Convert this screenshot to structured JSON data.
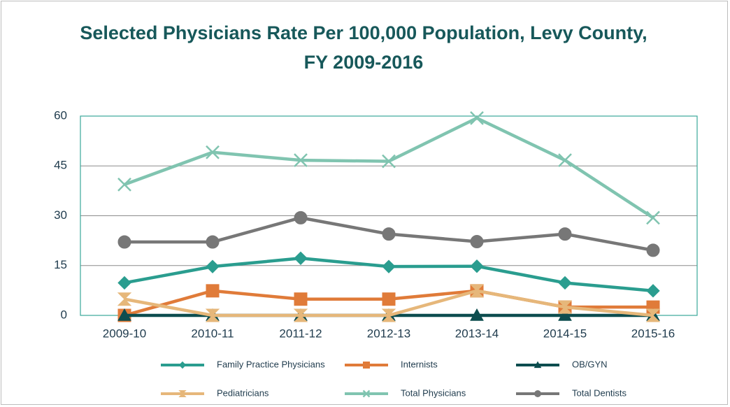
{
  "chart_data": {
    "type": "line",
    "title": "Selected Physicians Rate Per 100,000 Population, Levy County, FY 2009-2016",
    "categories": [
      "2009-10",
      "2010-11",
      "2011-12",
      "2012-13",
      "2013-14",
      "2014-15",
      "2015-16"
    ],
    "ylim": [
      0,
      60
    ],
    "yticks": [
      0,
      15,
      30,
      45,
      60
    ],
    "grid": true,
    "series": [
      {
        "name": "Family Practice Physicians",
        "color": "#2a9d8f",
        "marker": "diamond",
        "values": [
          9.8,
          14.7,
          17.2,
          14.7,
          14.8,
          9.8,
          7.4
        ]
      },
      {
        "name": "Internists",
        "color": "#e07b39",
        "marker": "square",
        "values": [
          0,
          7.4,
          4.9,
          4.9,
          7.4,
          2.5,
          2.5
        ]
      },
      {
        "name": "OB/GYN",
        "color": "#0d4d4f",
        "marker": "triangle",
        "values": [
          0,
          0,
          0,
          0,
          0,
          0,
          0
        ]
      },
      {
        "name": "Pediatricians",
        "color": "#e6b77a",
        "marker": "hourglass",
        "values": [
          4.9,
          0,
          0,
          0,
          7.4,
          2.5,
          0
        ]
      },
      {
        "name": "Total Physicians",
        "color": "#80c4b0",
        "marker": "cross",
        "values": [
          39.4,
          49.1,
          46.7,
          46.4,
          59.4,
          46.7,
          29.4
        ]
      },
      {
        "name": "Total Dentists",
        "color": "#777777",
        "marker": "circle",
        "values": [
          22.1,
          22.1,
          29.4,
          24.5,
          22.2,
          24.5,
          19.6
        ]
      }
    ]
  }
}
